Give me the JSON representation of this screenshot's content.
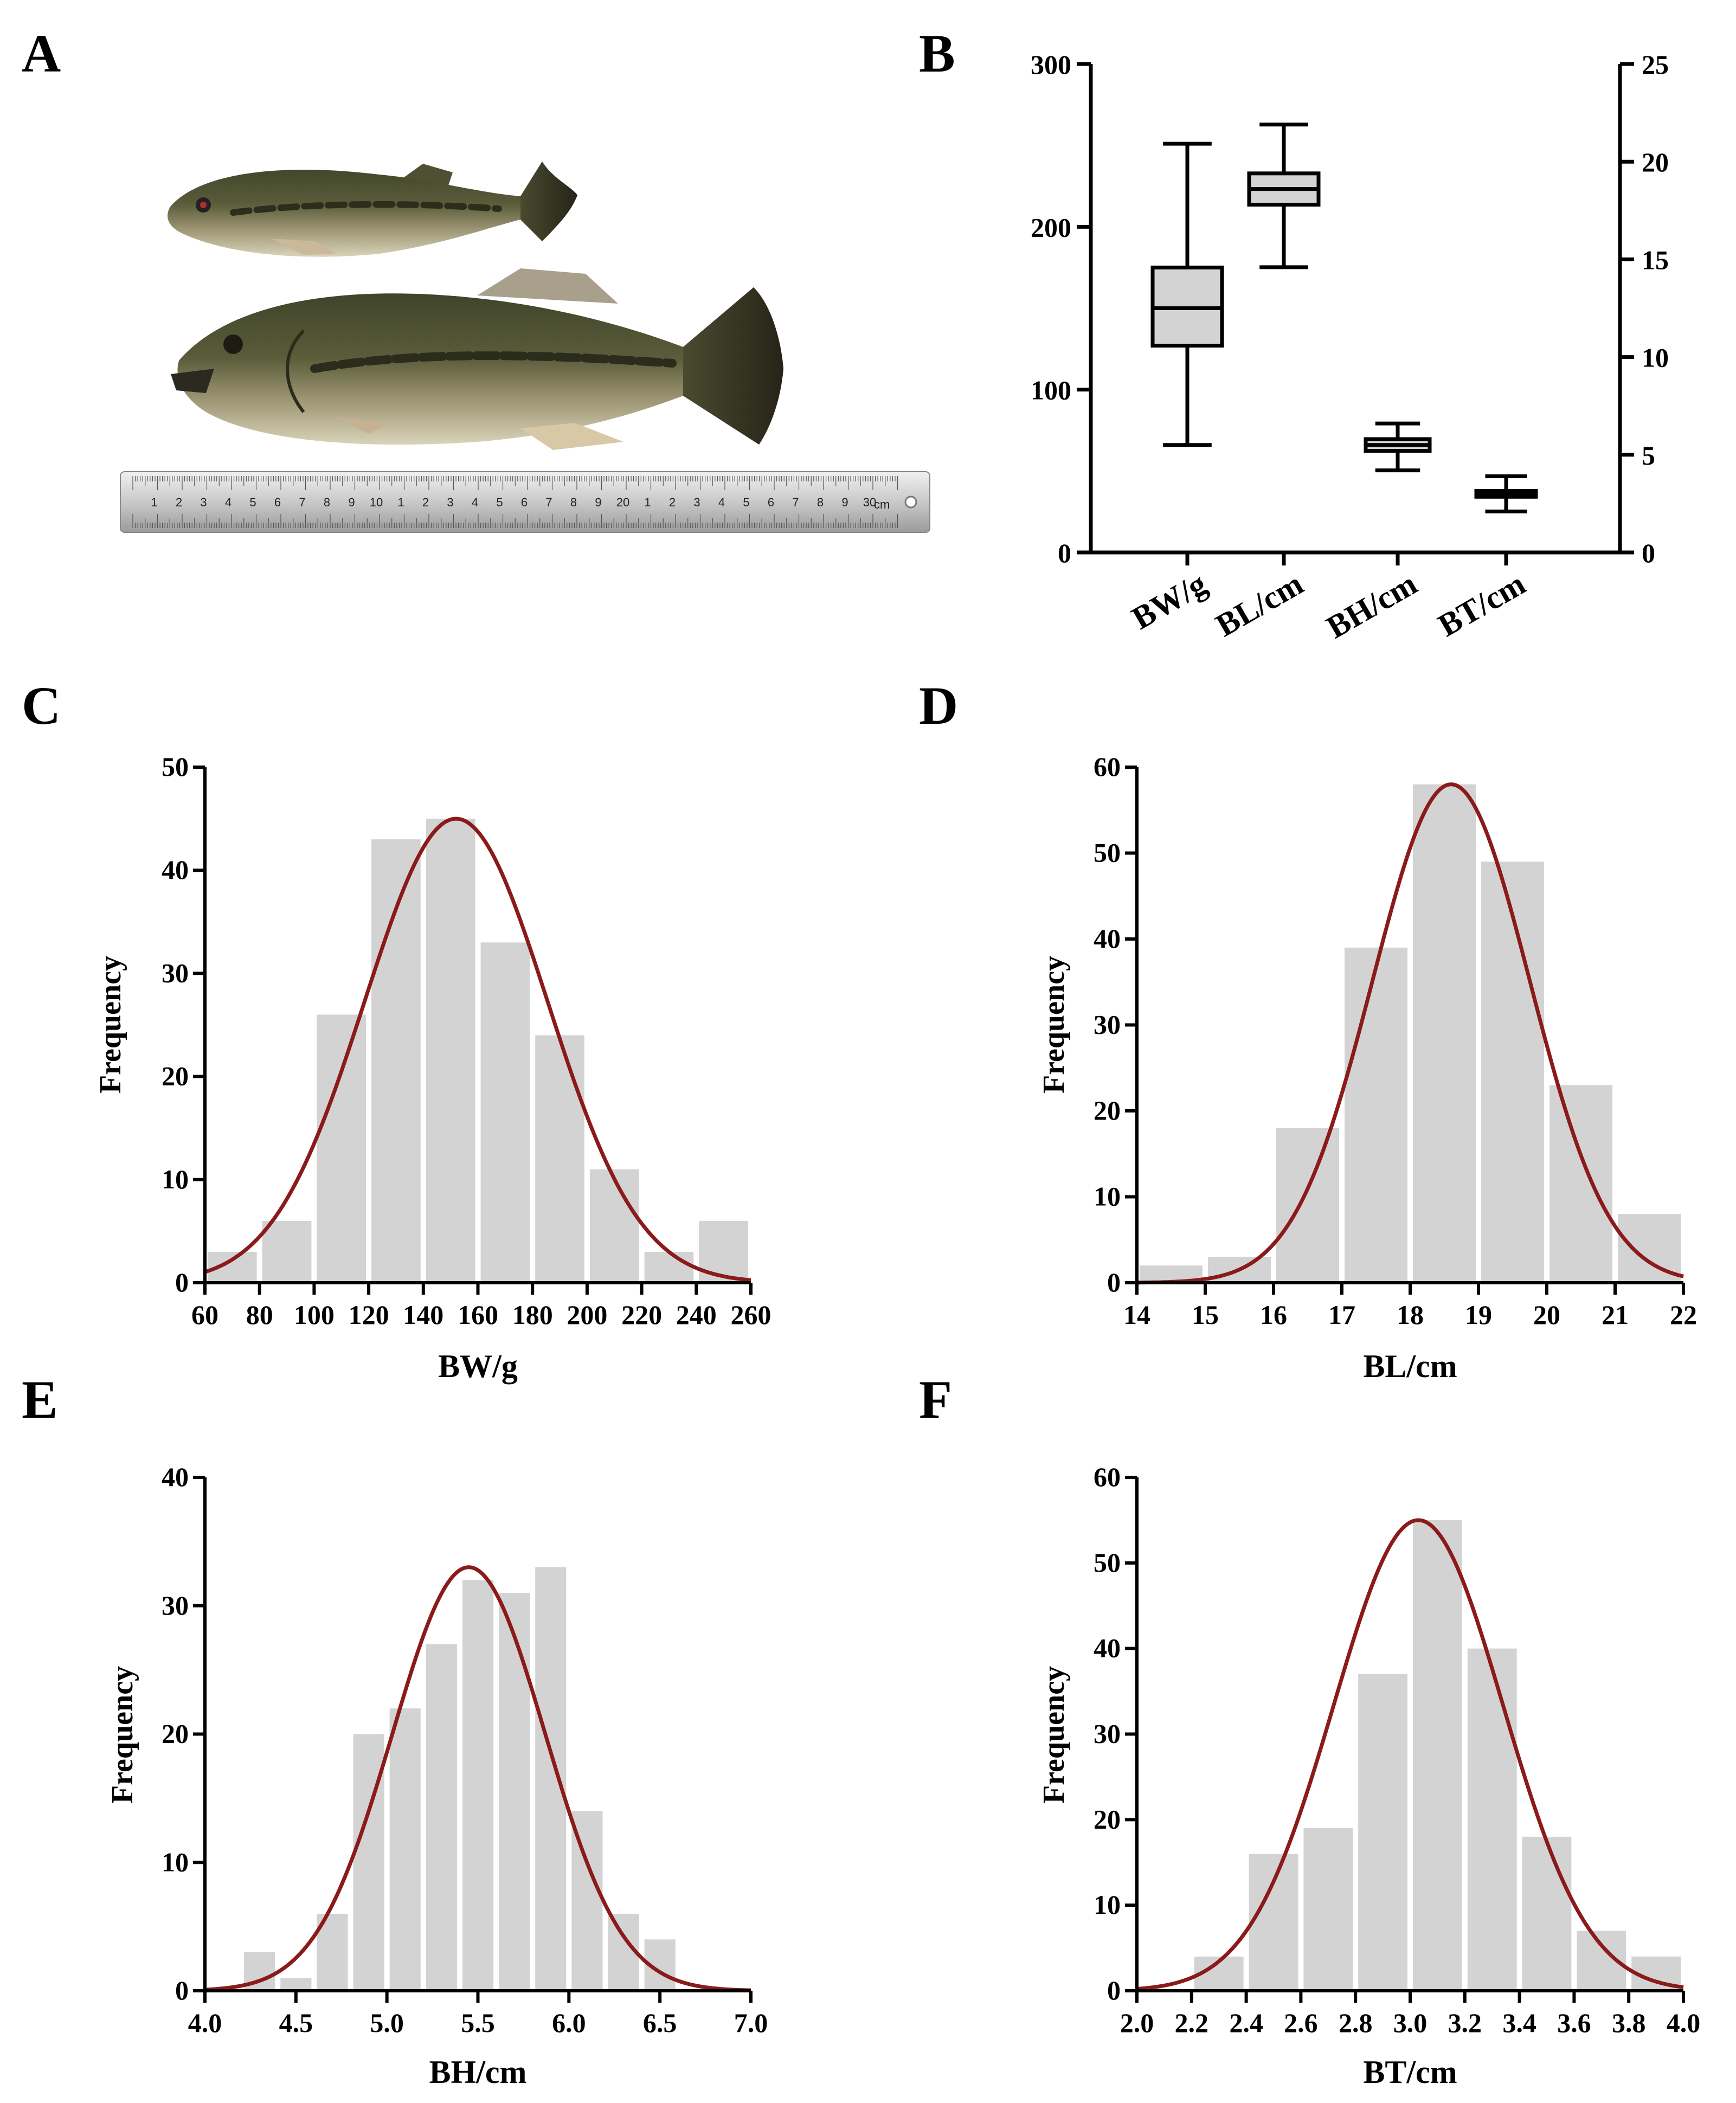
{
  "figure": {
    "panels": [
      "A",
      "B",
      "C",
      "D",
      "E",
      "F"
    ],
    "ruler_numbers": [
      "1",
      "2",
      "3",
      "4",
      "5",
      "6",
      "7",
      "8",
      "9",
      "10",
      "1",
      "2",
      "3",
      "4",
      "5",
      "6",
      "7",
      "8",
      "9",
      "20",
      "1",
      "2",
      "3",
      "4",
      "5",
      "6",
      "7",
      "8",
      "9",
      "30"
    ],
    "ruler_unit": "cm",
    "colors": {
      "bar": "#d3d3d3",
      "curve": "#8b1a1a",
      "box_fill": "#d3d3d3",
      "axis": "#000000"
    }
  },
  "chart_data": [
    {
      "panel": "B",
      "type": "box",
      "categories": [
        "BW/g",
        "BL/cm",
        "BH/cm",
        "BT/cm"
      ],
      "left_axis": {
        "ylim": [
          0,
          300
        ],
        "ticks": [
          0,
          100,
          200,
          300
        ],
        "applies_to": [
          "BW/g"
        ]
      },
      "right_axis": {
        "ylim": [
          0,
          25
        ],
        "ticks": [
          0,
          5,
          10,
          15,
          20,
          25
        ],
        "applies_to": [
          "BL/cm",
          "BH/cm",
          "BT/cm"
        ]
      },
      "boxes": [
        {
          "name": "BW/g",
          "axis": "left",
          "min": 66,
          "q1": 127,
          "median": 150,
          "q3": 175,
          "max": 251
        },
        {
          "name": "BL/cm",
          "axis": "right",
          "min": 14.6,
          "q1": 17.8,
          "median": 18.6,
          "q3": 19.4,
          "max": 21.9
        },
        {
          "name": "BH/cm",
          "axis": "right",
          "min": 4.2,
          "q1": 5.2,
          "median": 5.5,
          "q3": 5.8,
          "max": 6.6
        },
        {
          "name": "BT/cm",
          "axis": "right",
          "min": 2.1,
          "q1": 2.85,
          "median": 3.0,
          "q3": 3.15,
          "max": 3.9
        }
      ]
    },
    {
      "panel": "C",
      "type": "bar",
      "xlabel": "BW/g",
      "ylabel": "Frequency",
      "xlim": [
        60,
        260
      ],
      "ylim": [
        0,
        50
      ],
      "xticks": [
        60,
        80,
        100,
        120,
        140,
        160,
        180,
        200,
        220,
        240,
        260
      ],
      "yticks": [
        0,
        10,
        20,
        30,
        40,
        50
      ],
      "bin_width": 20,
      "bins": [
        60,
        80,
        100,
        120,
        140,
        160,
        180,
        200,
        220,
        240
      ],
      "values": [
        3,
        6,
        26,
        43,
        45,
        33,
        24,
        11,
        3,
        6
      ],
      "fit": {
        "type": "normal",
        "mean": 152,
        "sd": 33.5,
        "peak": 45
      }
    },
    {
      "panel": "D",
      "type": "bar",
      "xlabel": "BL/cm",
      "ylabel": "Frequency",
      "xlim": [
        14,
        22
      ],
      "ylim": [
        0,
        60
      ],
      "xticks": [
        14,
        15,
        16,
        17,
        18,
        19,
        20,
        21,
        22
      ],
      "yticks": [
        0,
        10,
        20,
        30,
        40,
        50,
        60
      ],
      "bin_width": 1,
      "bins": [
        14,
        15,
        16,
        17,
        18,
        19,
        20,
        21
      ],
      "values": [
        2,
        3,
        18,
        39,
        58,
        49,
        23,
        8
      ],
      "fit": {
        "type": "normal",
        "mean": 18.6,
        "sd": 1.15,
        "peak": 58
      }
    },
    {
      "panel": "E",
      "type": "bar",
      "xlabel": "BH/cm",
      "ylabel": "Frequency",
      "xlim": [
        4.0,
        7.0
      ],
      "ylim": [
        0,
        40
      ],
      "xticks": [
        "4.0",
        "4.5",
        "5.0",
        "5.5",
        "6.0",
        "6.5",
        "7.0"
      ],
      "yticks": [
        0,
        10,
        20,
        30,
        40
      ],
      "bin_width": 0.2,
      "bins": [
        4.2,
        4.4,
        4.6,
        4.8,
        5.0,
        5.2,
        5.4,
        5.6,
        5.8,
        6.0,
        6.2,
        6.4
      ],
      "values": [
        3,
        1,
        6,
        20,
        22,
        27,
        32,
        31,
        33,
        14,
        6,
        4
      ],
      "fit": {
        "type": "normal",
        "mean": 5.45,
        "sd": 0.42,
        "peak": 33
      }
    },
    {
      "panel": "F",
      "type": "bar",
      "xlabel": "BT/cm",
      "ylabel": "Frequency",
      "xlim": [
        2.0,
        4.0
      ],
      "ylim": [
        0,
        60
      ],
      "xticks": [
        "2.0",
        "2.2",
        "2.4",
        "2.6",
        "2.8",
        "3.0",
        "3.2",
        "3.4",
        "3.6",
        "3.8",
        "4.0"
      ],
      "yticks": [
        0,
        10,
        20,
        30,
        40,
        50,
        60
      ],
      "bin_width": 0.2,
      "bins": [
        2.2,
        2.4,
        2.6,
        2.8,
        3.0,
        3.2,
        3.4,
        3.6,
        3.8
      ],
      "values": [
        4,
        16,
        19,
        37,
        55,
        40,
        18,
        7,
        4
      ],
      "fit": {
        "type": "normal",
        "mean": 3.03,
        "sd": 0.31,
        "peak": 55
      }
    }
  ]
}
